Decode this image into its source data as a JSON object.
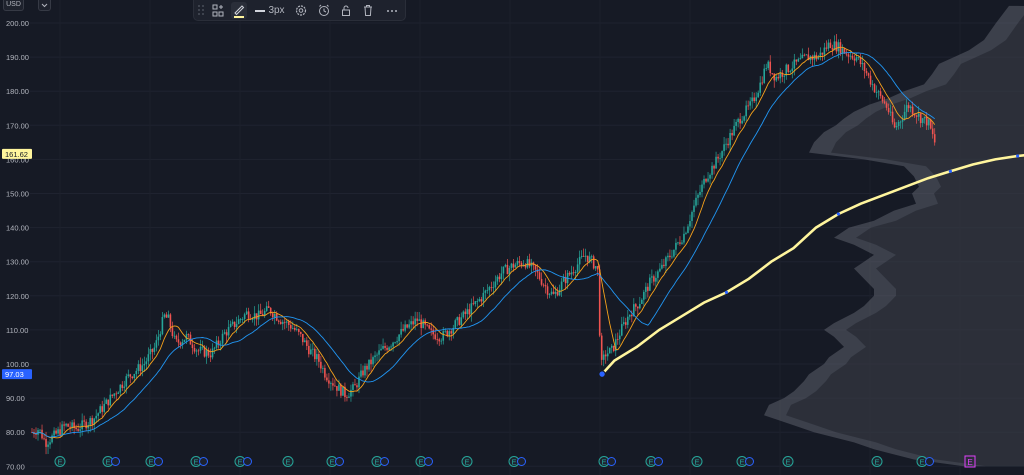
{
  "chart_data": {
    "type": "candlestick",
    "y_ticks": [
      200.0,
      190.0,
      180.0,
      170.0,
      160.0,
      150.0,
      140.0,
      130.0,
      120.0,
      110.0,
      100.0,
      90.0,
      80.0,
      70.0
    ],
    "y_tick_labels": [
      "200.00",
      "190.00",
      "180.00",
      "170.00",
      "160.00",
      "150.00",
      "140.00",
      "130.00",
      "120.00",
      "110.00",
      "100.00",
      "90.00",
      "80.00",
      "70.00"
    ],
    "ylim": [
      69.5,
      206
    ],
    "grid": true,
    "close_path": [
      [
        0,
        80
      ],
      [
        6,
        81
      ],
      [
        12,
        77
      ],
      [
        20,
        79
      ],
      [
        30,
        82
      ],
      [
        40,
        81
      ],
      [
        55,
        84
      ],
      [
        70,
        90
      ],
      [
        85,
        96
      ],
      [
        100,
        100
      ],
      [
        110,
        105
      ],
      [
        118,
        114
      ],
      [
        122,
        113
      ],
      [
        128,
        106
      ],
      [
        138,
        108
      ],
      [
        148,
        104
      ],
      [
        160,
        103
      ],
      [
        172,
        109
      ],
      [
        182,
        112
      ],
      [
        192,
        115
      ],
      [
        202,
        114
      ],
      [
        212,
        116
      ],
      [
        222,
        113
      ],
      [
        232,
        111
      ],
      [
        240,
        108
      ],
      [
        248,
        104
      ],
      [
        256,
        101
      ],
      [
        262,
        97
      ],
      [
        270,
        94
      ],
      [
        280,
        91
      ],
      [
        288,
        93
      ],
      [
        296,
        98
      ],
      [
        304,
        101
      ],
      [
        312,
        104
      ],
      [
        320,
        106
      ],
      [
        332,
        110
      ],
      [
        344,
        113
      ],
      [
        356,
        109
      ],
      [
        366,
        108
      ],
      [
        376,
        111
      ],
      [
        388,
        115
      ],
      [
        400,
        119
      ],
      [
        410,
        123
      ],
      [
        420,
        127
      ],
      [
        430,
        129
      ],
      [
        440,
        130
      ],
      [
        450,
        127
      ],
      [
        460,
        122
      ],
      [
        466,
        120
      ],
      [
        474,
        124
      ],
      [
        484,
        128
      ],
      [
        494,
        132
      ],
      [
        500,
        130
      ],
      [
        505,
        128
      ],
      [
        508,
        99
      ],
      [
        512,
        103
      ],
      [
        518,
        104
      ],
      [
        526,
        110
      ],
      [
        534,
        115
      ],
      [
        542,
        118
      ],
      [
        552,
        124
      ],
      [
        562,
        128
      ],
      [
        572,
        133
      ],
      [
        582,
        138
      ],
      [
        592,
        147
      ],
      [
        602,
        155
      ],
      [
        612,
        160
      ],
      [
        622,
        166
      ],
      [
        632,
        172
      ],
      [
        642,
        176
      ],
      [
        650,
        182
      ],
      [
        656,
        188
      ],
      [
        664,
        184
      ],
      [
        672,
        186
      ],
      [
        682,
        188
      ],
      [
        692,
        190
      ],
      [
        702,
        190
      ],
      [
        712,
        194
      ],
      [
        720,
        193
      ],
      [
        728,
        191
      ],
      [
        736,
        190
      ],
      [
        744,
        186
      ],
      [
        752,
        181
      ],
      [
        758,
        178
      ],
      [
        764,
        175
      ],
      [
        770,
        169
      ],
      [
        776,
        172
      ],
      [
        782,
        176
      ],
      [
        788,
        174
      ],
      [
        794,
        172
      ],
      [
        800,
        171
      ],
      [
        806,
        165
      ]
    ],
    "candle_body_colors": [
      "#26a69a",
      "#ef5350"
    ],
    "moving_averages": [
      {
        "color": "#f7a21b",
        "smoothing": 2
      },
      {
        "color": "#2196f3",
        "smoothing": 6
      }
    ],
    "anchored_vwap": {
      "color": "#fff59d",
      "points": [
        [
          509,
          97.03
        ],
        [
          520,
          101
        ],
        [
          540,
          105
        ],
        [
          560,
          110
        ],
        [
          580,
          114
        ],
        [
          600,
          118
        ],
        [
          620,
          121
        ],
        [
          640,
          125
        ],
        [
          660,
          130
        ],
        [
          680,
          134
        ],
        [
          700,
          140
        ],
        [
          720,
          144
        ],
        [
          740,
          147
        ],
        [
          760,
          149.5
        ],
        [
          780,
          152
        ],
        [
          800,
          154.5
        ],
        [
          820,
          156.5
        ],
        [
          840,
          158.5
        ],
        [
          860,
          160
        ],
        [
          880,
          161
        ],
        [
          895,
          161.5
        ],
        [
          906,
          161.62
        ]
      ]
    },
    "volume_profile": {
      "color": "#5d606b",
      "bins": [
        [
          205,
          15
        ],
        [
          200,
          28
        ],
        [
          195,
          40
        ],
        [
          192,
          55
        ],
        [
          190,
          70
        ],
        [
          188,
          85
        ],
        [
          185,
          92
        ],
        [
          182,
          100
        ],
        [
          180,
          120
        ],
        [
          178,
          135
        ],
        [
          176,
          155
        ],
        [
          174,
          170
        ],
        [
          172,
          180
        ],
        [
          170,
          188
        ],
        [
          168,
          200
        ],
        [
          165,
          210
        ],
        [
          162,
          215
        ],
        [
          160,
          160
        ],
        [
          158,
          120
        ],
        [
          155,
          110
        ],
        [
          152,
          105
        ],
        [
          150,
          112
        ],
        [
          147,
          108
        ],
        [
          145,
          130
        ],
        [
          142,
          150
        ],
        [
          140,
          175
        ],
        [
          137,
          190
        ],
        [
          135,
          170
        ],
        [
          132,
          150
        ],
        [
          130,
          160
        ],
        [
          128,
          170
        ],
        [
          125,
          160
        ],
        [
          122,
          150
        ],
        [
          120,
          150
        ],
        [
          117,
          160
        ],
        [
          115,
          170
        ],
        [
          112,
          190
        ],
        [
          110,
          200
        ],
        [
          108,
          190
        ],
        [
          105,
          180
        ],
        [
          102,
          195
        ],
        [
          100,
          200
        ],
        [
          97,
          215
        ],
        [
          95,
          220
        ],
        [
          92,
          230
        ],
        [
          90,
          240
        ],
        [
          88,
          255
        ],
        [
          85,
          260
        ],
        [
          82,
          230
        ],
        [
          80,
          210
        ],
        [
          77,
          170
        ],
        [
          75,
          150
        ],
        [
          72,
          110
        ],
        [
          70,
          60
        ]
      ]
    },
    "price_labels": [
      {
        "text": "161.62",
        "value": 161.62,
        "bg": "#fff59d",
        "fg": "#131722"
      },
      {
        "text": "97.03",
        "value": 97.03,
        "bg": "#2962ff",
        "fg": "#ffffff"
      }
    ],
    "event_markers": [
      {
        "x": 30,
        "label": "E",
        "dividend": false
      },
      {
        "x": 78,
        "label": "E",
        "dividend": true
      },
      {
        "x": 121,
        "label": "E",
        "dividend": true
      },
      {
        "x": 166,
        "label": "E",
        "dividend": true
      },
      {
        "x": 210,
        "label": "E",
        "dividend": true
      },
      {
        "x": 258,
        "label": "E",
        "dividend": false
      },
      {
        "x": 302,
        "label": "E",
        "dividend": true
      },
      {
        "x": 347,
        "label": "E",
        "dividend": true
      },
      {
        "x": 391,
        "label": "E",
        "dividend": true
      },
      {
        "x": 437,
        "label": "E",
        "dividend": false
      },
      {
        "x": 484,
        "label": "E",
        "dividend": true
      },
      {
        "x": 574,
        "label": "E",
        "dividend": true
      },
      {
        "x": 621,
        "label": "E",
        "dividend": true
      },
      {
        "x": 667,
        "label": "E",
        "dividend": false
      },
      {
        "x": 712,
        "label": "E",
        "dividend": true
      },
      {
        "x": 758,
        "label": "E",
        "dividend": false
      },
      {
        "x": 847,
        "label": "E",
        "dividend": false
      },
      {
        "x": 892,
        "label": "E",
        "dividend": true
      },
      {
        "x": 940,
        "label": "E",
        "dividend": false,
        "highlight": true
      }
    ]
  },
  "toolbar": {
    "line_width_label": "3px",
    "icons": [
      "drag-handle-icon",
      "objects-tree-icon",
      "pencil-icon",
      "line-width-icon",
      "settings-icon",
      "alert-icon",
      "lock-icon",
      "trash-icon",
      "more-icon"
    ],
    "accent_line_color": "#fff59d"
  },
  "top_left": {
    "currency_label": "USD"
  }
}
